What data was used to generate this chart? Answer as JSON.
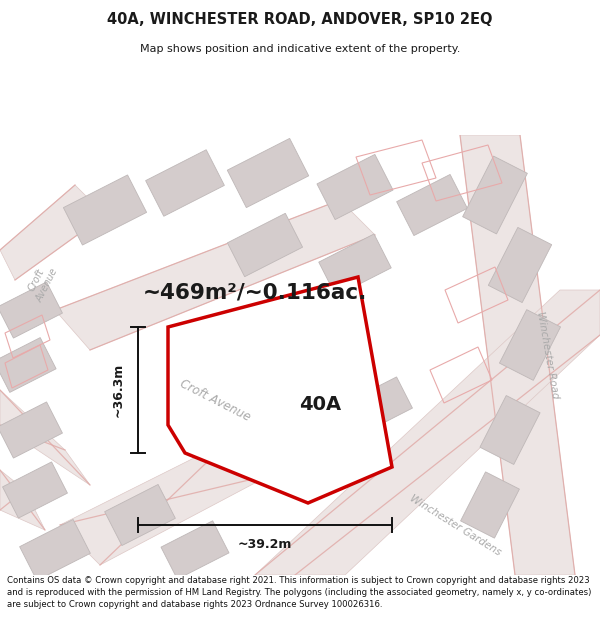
{
  "title": "40A, WINCHESTER ROAD, ANDOVER, SP10 2EQ",
  "subtitle": "Map shows position and indicative extent of the property.",
  "area_label": "~469m²/~0.116ac.",
  "plot_label": "40A",
  "width_label": "~39.2m",
  "height_label": "~36.3m",
  "footer": "Contains OS data © Crown copyright and database right 2021. This information is subject to Crown copyright and database rights 2023 and is reproduced with the permission of HM Land Registry. The polygons (including the associated geometry, namely x, y co-ordinates) are subject to Crown copyright and database rights 2023 Ordnance Survey 100026316.",
  "map_bg": "#f2eeee",
  "road_fill": "#ede5e4",
  "road_edge": "#ddc8c6",
  "building_fill": "#d4cccc",
  "building_edge": "#bfb8b8",
  "outline_edge": "#e8aaaa",
  "highlight_color": "#cc0000",
  "text_color": "#1a1a1a",
  "road_label_color": "#aaaaaa",
  "dim_color": "#111111"
}
